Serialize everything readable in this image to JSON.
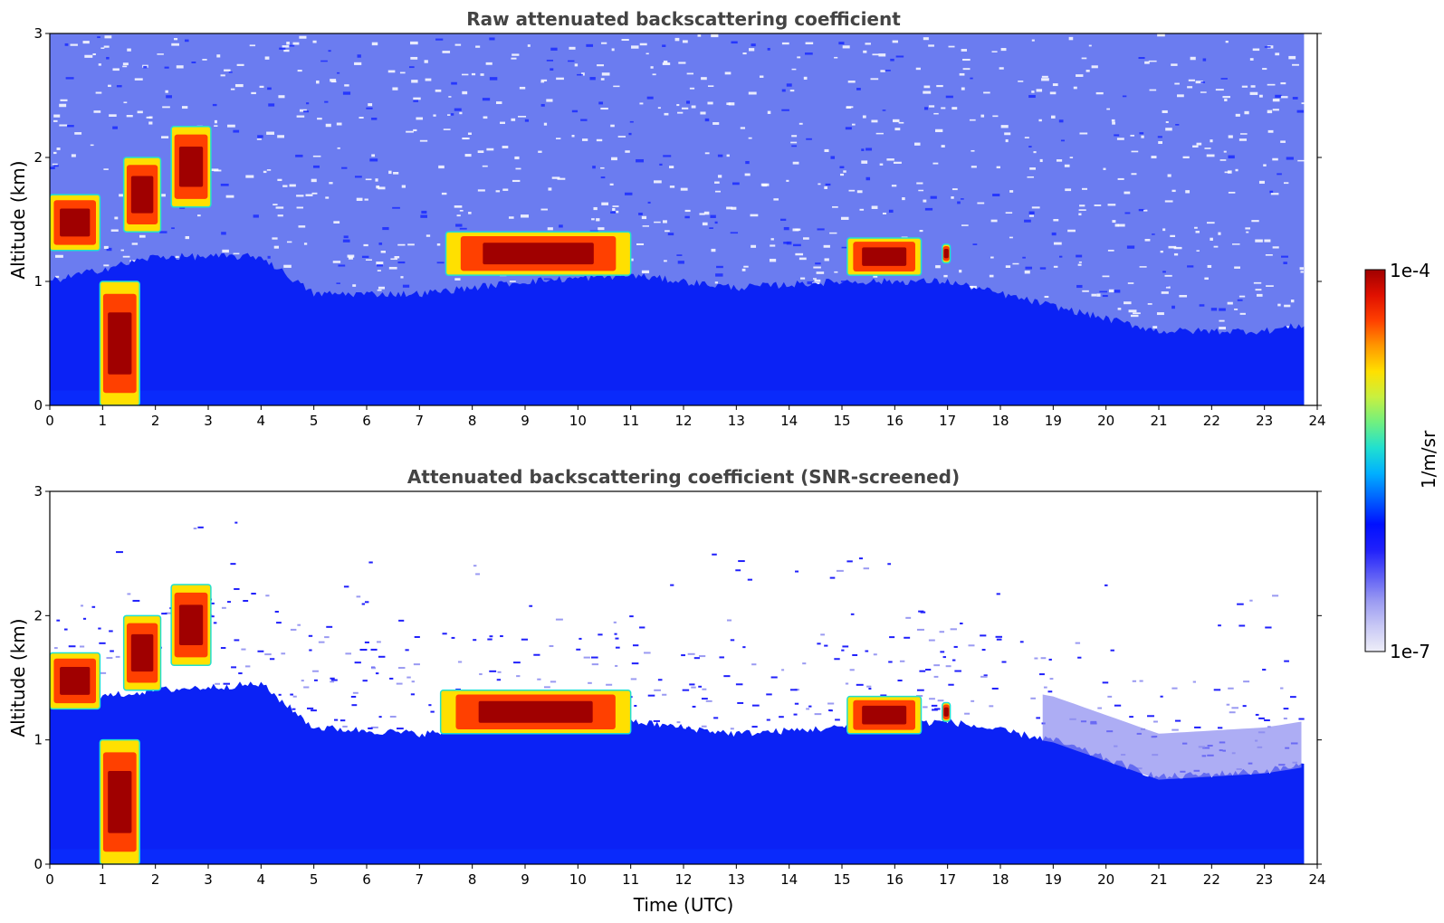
{
  "chart_data": [
    {
      "type": "heatmap",
      "title": "Raw attenuated backscattering coefficient",
      "xlabel": "",
      "ylabel": "Altitude (km)",
      "xlim": [
        0,
        24
      ],
      "ylim": [
        0,
        3
      ],
      "x_ticks": [
        "0",
        "1",
        "2",
        "3",
        "4",
        "5",
        "6",
        "7",
        "8",
        "9",
        "10",
        "11",
        "12",
        "13",
        "14",
        "15",
        "16",
        "17",
        "18",
        "19",
        "20",
        "21",
        "22",
        "23",
        "24"
      ],
      "y_ticks": [
        "0",
        "1",
        "2",
        "3"
      ],
      "data_end_time": 23.75,
      "noise_level": "high",
      "boundary_layer_top_km": [
        [
          0,
          1.0
        ],
        [
          2,
          1.2
        ],
        [
          4,
          1.2
        ],
        [
          5,
          0.9
        ],
        [
          7,
          0.9
        ],
        [
          9,
          1.0
        ],
        [
          11,
          1.05
        ],
        [
          13,
          0.95
        ],
        [
          15,
          1.0
        ],
        [
          17,
          1.0
        ],
        [
          19,
          0.8
        ],
        [
          21,
          0.6
        ],
        [
          23,
          0.6
        ],
        [
          23.75,
          0.65
        ]
      ],
      "features": [
        {
          "kind": "cloud",
          "t0": 0.0,
          "t1": 0.95,
          "z0": 1.25,
          "z1": 1.7,
          "intensity": "high"
        },
        {
          "kind": "cloud",
          "t0": 0.95,
          "t1": 1.7,
          "z0": 0.0,
          "z1": 1.0,
          "intensity": "high"
        },
        {
          "kind": "cloud",
          "t0": 1.4,
          "t1": 2.1,
          "z0": 1.4,
          "z1": 2.0,
          "intensity": "high"
        },
        {
          "kind": "cloud",
          "t0": 2.3,
          "t1": 3.05,
          "z0": 1.6,
          "z1": 2.25,
          "intensity": "high"
        },
        {
          "kind": "cloud",
          "t0": 7.5,
          "t1": 11.0,
          "z0": 1.05,
          "z1": 1.4,
          "intensity": "high"
        },
        {
          "kind": "cloud",
          "t0": 15.1,
          "t1": 16.5,
          "z0": 1.05,
          "z1": 1.35,
          "intensity": "high"
        },
        {
          "kind": "cloud",
          "t0": 16.9,
          "t1": 17.05,
          "z0": 1.15,
          "z1": 1.3,
          "intensity": "high"
        }
      ]
    },
    {
      "type": "heatmap",
      "title": "Attenuated backscattering coefficient (SNR-screened)",
      "xlabel": "Time (UTC)",
      "ylabel": "Altitude (km)",
      "xlim": [
        0,
        24
      ],
      "ylim": [
        0,
        3
      ],
      "x_ticks": [
        "0",
        "1",
        "2",
        "3",
        "4",
        "5",
        "6",
        "7",
        "8",
        "9",
        "10",
        "11",
        "12",
        "13",
        "14",
        "15",
        "16",
        "17",
        "18",
        "19",
        "20",
        "21",
        "22",
        "23",
        "24"
      ],
      "y_ticks": [
        "0",
        "1",
        "2",
        "3"
      ],
      "data_end_time": 23.75,
      "noise_level": "screened",
      "boundary_layer_top_km": [
        [
          0,
          1.3
        ],
        [
          2,
          1.4
        ],
        [
          4,
          1.45
        ],
        [
          5,
          1.1
        ],
        [
          7,
          1.05
        ],
        [
          9,
          1.1
        ],
        [
          11,
          1.15
        ],
        [
          13,
          1.05
        ],
        [
          15,
          1.1
        ],
        [
          17,
          1.15
        ],
        [
          19,
          1.0
        ],
        [
          21,
          0.7
        ],
        [
          23,
          0.75
        ],
        [
          23.75,
          0.8
        ]
      ],
      "features": [
        {
          "kind": "cloud",
          "t0": 0.0,
          "t1": 0.95,
          "z0": 1.25,
          "z1": 1.7,
          "intensity": "high"
        },
        {
          "kind": "cloud",
          "t0": 0.95,
          "t1": 1.7,
          "z0": 0.0,
          "z1": 1.0,
          "intensity": "high"
        },
        {
          "kind": "cloud",
          "t0": 1.4,
          "t1": 2.1,
          "z0": 1.4,
          "z1": 2.0,
          "intensity": "high"
        },
        {
          "kind": "cloud",
          "t0": 2.3,
          "t1": 3.05,
          "z0": 1.6,
          "z1": 2.25,
          "intensity": "high"
        },
        {
          "kind": "cloud",
          "t0": 7.4,
          "t1": 11.0,
          "z0": 1.05,
          "z1": 1.4,
          "intensity": "high"
        },
        {
          "kind": "cloud",
          "t0": 15.1,
          "t1": 16.5,
          "z0": 1.05,
          "z1": 1.35,
          "intensity": "high"
        },
        {
          "kind": "cloud",
          "t0": 16.9,
          "t1": 17.05,
          "z0": 1.15,
          "z1": 1.3,
          "intensity": "high"
        }
      ]
    }
  ],
  "colorbar": {
    "label": "1/m/sr",
    "max_label": "1e-4",
    "min_label": "1e-7",
    "colors": [
      "#eeeef8",
      "#c8c8f5",
      "#9a9af2",
      "#5c5cf5",
      "#2020fb",
      "#0010ff",
      "#0060ff",
      "#00b0ff",
      "#20e0d0",
      "#70f080",
      "#c8f040",
      "#ffe000",
      "#ff9800",
      "#ff4000",
      "#e01000",
      "#a00000"
    ]
  }
}
